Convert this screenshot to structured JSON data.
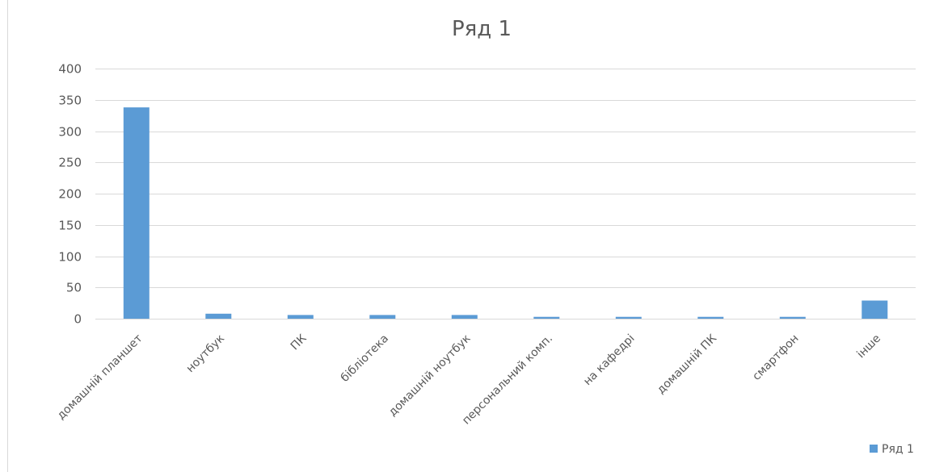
{
  "chart_data": {
    "type": "bar",
    "title": "Ряд 1",
    "xlabel": "",
    "ylabel": "",
    "categories": [
      "домашній планшет",
      "ноутбук",
      "ПК",
      "бібліотека",
      "домашній ноутбук",
      "персональний комп.",
      "на кафедрі",
      "домашній ПК",
      "смартфон",
      "інше"
    ],
    "series": [
      {
        "name": "Ряд 1",
        "values": [
          338,
          8,
          6,
          6,
          6,
          3,
          3,
          3,
          3,
          29
        ]
      }
    ],
    "ylim": [
      0,
      400
    ],
    "yticks": [
      0,
      50,
      100,
      150,
      200,
      250,
      300,
      350,
      400
    ],
    "grid": true,
    "legend_position": "bottom-right",
    "bar_color": "#5b9bd5"
  }
}
